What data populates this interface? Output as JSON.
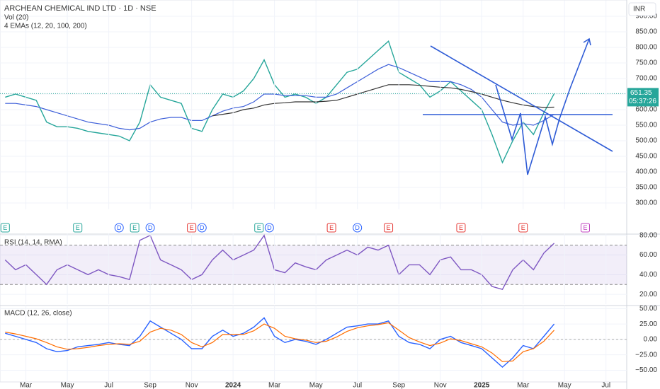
{
  "chart_data": [
    {
      "type": "line",
      "title": "ARCHEAN CHEMICAL IND LTD · 1D · NSE",
      "annotations": [
        "Vol (20)",
        "4 EMAs (12, 20, 100, 200)"
      ],
      "currency": "INR",
      "last_price": {
        "value": 651.35,
        "label": "651.35"
      },
      "countdown": "05:37:26",
      "xlim": [
        -0.5,
        60
      ],
      "x": [
        0,
        1,
        2,
        3,
        4,
        5,
        6,
        7,
        8,
        9,
        10,
        11,
        12,
        13,
        14,
        15,
        16,
        17,
        18,
        19,
        20,
        21,
        22,
        23,
        24,
        25,
        26,
        27,
        28,
        29,
        30,
        31,
        32,
        33,
        34,
        35,
        36,
        37,
        38,
        39,
        40,
        41,
        42,
        43,
        44,
        45,
        46,
        47,
        48,
        49,
        50,
        51,
        52,
        53
      ],
      "series": [
        {
          "color": "#26a69a",
          "values": [
            640,
            650,
            640,
            630,
            560,
            545,
            545,
            540,
            530,
            525,
            520,
            515,
            500,
            560,
            680,
            640,
            630,
            620,
            540,
            530,
            600,
            650,
            640,
            660,
            700,
            760,
            680,
            640,
            650,
            640,
            620,
            640,
            680,
            720,
            730,
            760,
            790,
            820,
            720,
            700,
            680,
            640,
            660,
            690,
            660,
            630,
            600,
            520,
            430,
            500,
            560,
            520,
            590,
            651.35
          ]
        },
        {
          "color": "#3d5fd9",
          "values": [
            620,
            620,
            615,
            610,
            600,
            590,
            580,
            570,
            560,
            555,
            550,
            540,
            535,
            540,
            560,
            570,
            575,
            575,
            565,
            565,
            580,
            595,
            605,
            610,
            625,
            650,
            650,
            645,
            645,
            645,
            640,
            640,
            650,
            670,
            690,
            710,
            730,
            745,
            735,
            720,
            705,
            690,
            690,
            690,
            680,
            665,
            640,
            600,
            560,
            550,
            555,
            550,
            565,
            585
          ]
        },
        {
          "color": "#333333",
          "values": [
            null,
            null,
            null,
            null,
            null,
            null,
            null,
            null,
            null,
            null,
            null,
            null,
            null,
            null,
            null,
            null,
            null,
            null,
            null,
            null,
            580,
            585,
            590,
            600,
            605,
            615,
            620,
            622,
            625,
            625,
            625,
            627,
            630,
            640,
            650,
            660,
            670,
            680,
            680,
            680,
            678,
            675,
            672,
            670,
            665,
            658,
            650,
            640,
            630,
            622,
            615,
            610,
            607,
            608
          ]
        }
      ],
      "events": [
        {
          "label": "E",
          "x": 0,
          "color": "#26a69a"
        },
        {
          "label": "E",
          "x": 7,
          "color": "#26a69a"
        },
        {
          "label": "D",
          "x": 11,
          "color": "#2962ff"
        },
        {
          "label": "E",
          "x": 12.5,
          "color": "#26a69a"
        },
        {
          "label": "D",
          "x": 14,
          "color": "#2962ff"
        },
        {
          "label": "E",
          "x": 18,
          "color": "#e53935"
        },
        {
          "label": "D",
          "x": 19,
          "color": "#2962ff"
        },
        {
          "label": "E",
          "x": 24.5,
          "color": "#26a69a"
        },
        {
          "label": "D",
          "x": 25.5,
          "color": "#2962ff"
        },
        {
          "label": "E",
          "x": 31.5,
          "color": "#e53935"
        },
        {
          "label": "D",
          "x": 34,
          "color": "#2962ff"
        },
        {
          "label": "E",
          "x": 37,
          "color": "#e53935"
        },
        {
          "label": "E",
          "x": 44,
          "color": "#e53935"
        },
        {
          "label": "E",
          "x": 50,
          "color": "#e53935"
        },
        {
          "label": "E",
          "x": 56,
          "color": "#c040c0"
        }
      ],
      "ylim": [
        280,
        910
      ],
      "yticks": [
        {
          "value": 300,
          "label": "300.00"
        },
        {
          "value": 350,
          "label": "350.00"
        },
        {
          "value": 400,
          "label": "400.00"
        },
        {
          "value": 450,
          "label": "450.00"
        },
        {
          "value": 500,
          "label": "500.00"
        },
        {
          "value": 550,
          "label": "550.00"
        },
        {
          "value": 600,
          "label": "600.00"
        },
        {
          "value": 650,
          "label": "650.00"
        },
        {
          "value": 700,
          "label": "700.00"
        },
        {
          "value": 750,
          "label": "750.00"
        },
        {
          "value": 800,
          "label": "800.00"
        },
        {
          "value": 850,
          "label": "850.00"
        },
        {
          "value": 900,
          "label": "900.00"
        }
      ],
      "grid": true
    },
    {
      "type": "line",
      "title": "RSI (14, 14, RMA)",
      "xlim": [
        -0.5,
        60
      ],
      "x": [
        0,
        1,
        2,
        3,
        4,
        5,
        6,
        7,
        8,
        9,
        10,
        11,
        12,
        13,
        14,
        15,
        16,
        17,
        18,
        19,
        20,
        21,
        22,
        23,
        24,
        25,
        26,
        27,
        28,
        29,
        30,
        31,
        32,
        33,
        34,
        35,
        36,
        37,
        38,
        39,
        40,
        41,
        42,
        43,
        44,
        45,
        46,
        47,
        48,
        49,
        50,
        51,
        52,
        53
      ],
      "series": [
        {
          "color": "#7e57c2",
          "values": [
            55,
            45,
            50,
            40,
            30,
            45,
            50,
            45,
            40,
            45,
            40,
            38,
            35,
            75,
            80,
            55,
            50,
            45,
            35,
            40,
            55,
            65,
            55,
            60,
            65,
            80,
            45,
            42,
            52,
            48,
            45,
            55,
            60,
            65,
            60,
            68,
            65,
            70,
            40,
            50,
            50,
            40,
            55,
            58,
            45,
            45,
            40,
            28,
            25,
            45,
            55,
            45,
            62,
            72
          ]
        }
      ],
      "bands": [
        30,
        70
      ],
      "ylim": [
        10,
        82
      ],
      "yticks": [
        {
          "value": 20,
          "label": "20.00"
        },
        {
          "value": 40,
          "label": "40.00"
        },
        {
          "value": 60,
          "label": "60.00"
        },
        {
          "value": 80,
          "label": "80.00"
        }
      ],
      "grid": true
    },
    {
      "type": "line",
      "title": "MACD (12, 26, close)",
      "xlim": [
        -0.5,
        60
      ],
      "x": [
        0,
        1,
        2,
        3,
        4,
        5,
        6,
        7,
        8,
        9,
        10,
        11,
        12,
        13,
        14,
        15,
        16,
        17,
        18,
        19,
        20,
        21,
        22,
        23,
        24,
        25,
        26,
        27,
        28,
        29,
        30,
        31,
        32,
        33,
        34,
        35,
        36,
        37,
        38,
        39,
        40,
        41,
        42,
        43,
        44,
        45,
        46,
        47,
        48,
        49,
        50,
        51,
        52,
        53
      ],
      "series": [
        {
          "color": "#2962ff",
          "values": [
            10,
            5,
            0,
            -5,
            -15,
            -20,
            -18,
            -12,
            -10,
            -8,
            -5,
            -8,
            -10,
            5,
            30,
            20,
            10,
            0,
            -15,
            -15,
            5,
            15,
            5,
            10,
            20,
            35,
            5,
            -5,
            0,
            -3,
            -8,
            0,
            10,
            20,
            22,
            25,
            25,
            30,
            5,
            -5,
            -8,
            -15,
            0,
            5,
            -5,
            -10,
            -15,
            -30,
            -45,
            -30,
            -10,
            -15,
            5,
            25
          ]
        },
        {
          "color": "#ff6d00",
          "values": [
            12,
            9,
            5,
            1,
            -5,
            -12,
            -16,
            -15,
            -13,
            -10,
            -8,
            -7,
            -8,
            -3,
            12,
            18,
            15,
            8,
            -5,
            -12,
            -5,
            8,
            8,
            8,
            14,
            25,
            18,
            5,
            1,
            -1,
            -5,
            -3,
            4,
            13,
            19,
            22,
            24,
            27,
            15,
            3,
            -4,
            -10,
            -6,
            1,
            -2,
            -7,
            -12,
            -22,
            -36,
            -35,
            -20,
            -15,
            -3,
            15
          ]
        }
      ],
      "ylim": [
        -69,
        55
      ],
      "yticks": [
        {
          "value": -50,
          "label": "−50.00"
        },
        {
          "value": -25,
          "label": "−25.00"
        },
        {
          "value": 0,
          "label": "0.00"
        },
        {
          "value": 25,
          "label": "25.00"
        },
        {
          "value": 50,
          "label": "50.00"
        }
      ],
      "xticks": [
        {
          "value": 2,
          "label": "Mar"
        },
        {
          "value": 6,
          "label": "May"
        },
        {
          "value": 10,
          "label": "Jul"
        },
        {
          "value": 14,
          "label": "Sep"
        },
        {
          "value": 18,
          "label": "Nov"
        },
        {
          "value": 22,
          "label": "2024"
        },
        {
          "value": 26,
          "label": "Mar"
        },
        {
          "value": 30,
          "label": "May"
        },
        {
          "value": 34,
          "label": "Jul"
        },
        {
          "value": 38,
          "label": "Sep"
        },
        {
          "value": 42,
          "label": "Nov"
        },
        {
          "value": 46,
          "label": "2025"
        },
        {
          "value": 50,
          "label": "Mar"
        },
        {
          "value": 54,
          "label": "May"
        },
        {
          "value": 58,
          "label": "Jul"
        }
      ],
      "grid": true
    }
  ]
}
